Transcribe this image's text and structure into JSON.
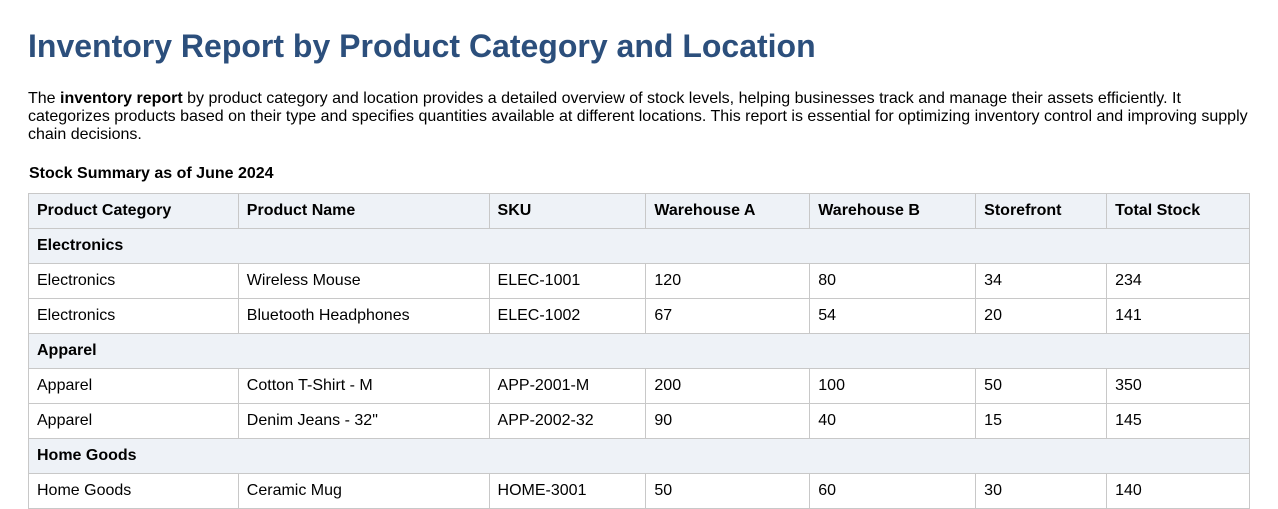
{
  "title": "Inventory Report by Product Category and Location",
  "intro": {
    "prefix": "The ",
    "bold": "inventory report",
    "suffix": " by product category and location provides a detailed overview of stock levels, helping businesses track and manage their assets efficiently. It categorizes products based on their type and specifies quantities available at different locations. This report is essential for optimizing inventory control and improving supply chain decisions."
  },
  "table": {
    "caption": "Stock Summary as of June 2024",
    "headers": [
      "Product Category",
      "Product Name",
      "SKU",
      "Warehouse A",
      "Warehouse B",
      "Storefront",
      "Total Stock"
    ],
    "groups": [
      {
        "name": "Electronics",
        "rows": [
          [
            "Electronics",
            "Wireless Mouse",
            "ELEC-1001",
            "120",
            "80",
            "34",
            "234"
          ],
          [
            "Electronics",
            "Bluetooth Headphones",
            "ELEC-1002",
            "67",
            "54",
            "20",
            "141"
          ]
        ]
      },
      {
        "name": "Apparel",
        "rows": [
          [
            "Apparel",
            "Cotton T-Shirt - M",
            "APP-2001-M",
            "200",
            "100",
            "50",
            "350"
          ],
          [
            "Apparel",
            "Denim Jeans - 32\"",
            "APP-2002-32",
            "90",
            "40",
            "15",
            "145"
          ]
        ]
      },
      {
        "name": "Home Goods",
        "rows": [
          [
            "Home Goods",
            "Ceramic Mug",
            "HOME-3001",
            "50",
            "60",
            "30",
            "140"
          ]
        ]
      }
    ]
  }
}
